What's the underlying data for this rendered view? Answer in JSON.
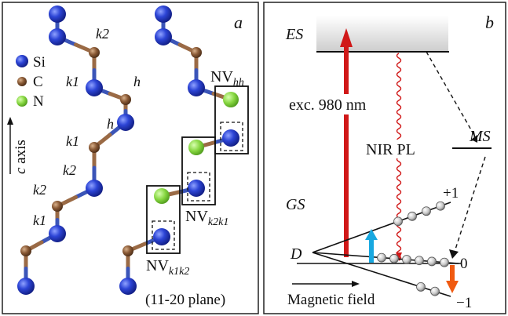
{
  "panel_a": {
    "letter": "a",
    "legend": [
      {
        "symbol": "Si",
        "color": "#2236c8"
      },
      {
        "symbol": "C",
        "color": "#8a5a36"
      },
      {
        "symbol": "N",
        "color": "#8ad84a"
      }
    ],
    "axis_label_c": "c",
    "axis_label_rest": " axis",
    "site_labels": [
      "k2",
      "k1",
      "h",
      "h",
      "k1",
      "k2",
      "k2",
      "k1"
    ],
    "nv_labels": [
      {
        "base": "NV",
        "sub": "hh"
      },
      {
        "base": "NV",
        "sub": "k2k1"
      },
      {
        "base": "NV",
        "sub": "k1k2"
      }
    ],
    "plane": "(11-20 plane)"
  },
  "panel_b": {
    "letter": "b",
    "es": "ES",
    "gs": "GS",
    "ms": "MS",
    "d": "D",
    "excitation": "exc. 980 nm",
    "pl": "NIR PL",
    "level_plus": "+1",
    "level_zero": "0",
    "level_minus": "−1",
    "field": "Magnetic field"
  }
}
